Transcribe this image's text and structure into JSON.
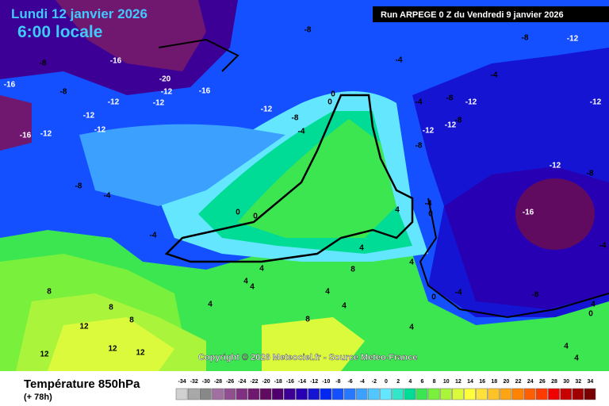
{
  "header": {
    "date": "Lundi 12 janvier 2026",
    "time": "6:00 locale",
    "run": "Run ARPEGE 0 Z du Vendredi 9 janvier 2026"
  },
  "copyright": "Copyright © 2026 Meteociel.fr - Source Meteo-France",
  "footer": {
    "title": "Température 850hPa",
    "lead": "(+ 78h)"
  },
  "scale": {
    "values": [
      -34,
      -32,
      -30,
      -28,
      -26,
      -24,
      -22,
      -20,
      -18,
      -16,
      -14,
      -12,
      -10,
      -8,
      -6,
      -4,
      -2,
      0,
      2,
      4,
      6,
      8,
      10,
      12,
      14,
      16,
      18,
      20,
      22,
      24,
      26,
      28,
      30,
      32,
      34
    ],
    "colors": [
      "#d0d0d0",
      "#a8a8a8",
      "#888888",
      "#a070a0",
      "#905090",
      "#803080",
      "#701870",
      "#600a60",
      "#50006e",
      "#3c0096",
      "#2800b4",
      "#1414d2",
      "#0028f0",
      "#1450ff",
      "#2878ff",
      "#3ca0ff",
      "#50c8ff",
      "#64e6ff",
      "#32e6c8",
      "#00dc96",
      "#3ce650",
      "#78f03c",
      "#aaf53c",
      "#dcfa3c",
      "#ffff3c",
      "#ffe13c",
      "#ffc328",
      "#ffa514",
      "#ff8200",
      "#ff5f00",
      "#ff3c00",
      "#f00000",
      "#c80000",
      "#a00000",
      "#780000"
    ]
  },
  "map": {
    "labels": [
      "-8",
      "-4",
      "-8",
      "-16",
      "-16",
      "-8",
      "-12",
      "-12",
      "-20",
      "-12",
      "-16",
      "-12",
      "-8",
      "-4",
      "0",
      "0",
      "-12",
      "-12",
      "-16",
      "-12",
      "-8",
      "-4",
      "-4",
      "0",
      "0",
      "-4",
      "-8",
      "-12",
      "-8",
      "-12",
      "-12",
      "-8",
      "-4",
      "-8",
      "-12",
      "-12",
      "-12",
      "-8",
      "-16",
      "-4",
      "0",
      "4",
      "4",
      "4",
      "4",
      "4",
      "4",
      "8",
      "8",
      "8",
      "12",
      "12",
      "12",
      "12",
      "8",
      "4",
      "4",
      "8",
      "4",
      "4",
      "0",
      "-4",
      "-8",
      "4",
      "0",
      "4",
      "4",
      "-4"
    ]
  }
}
